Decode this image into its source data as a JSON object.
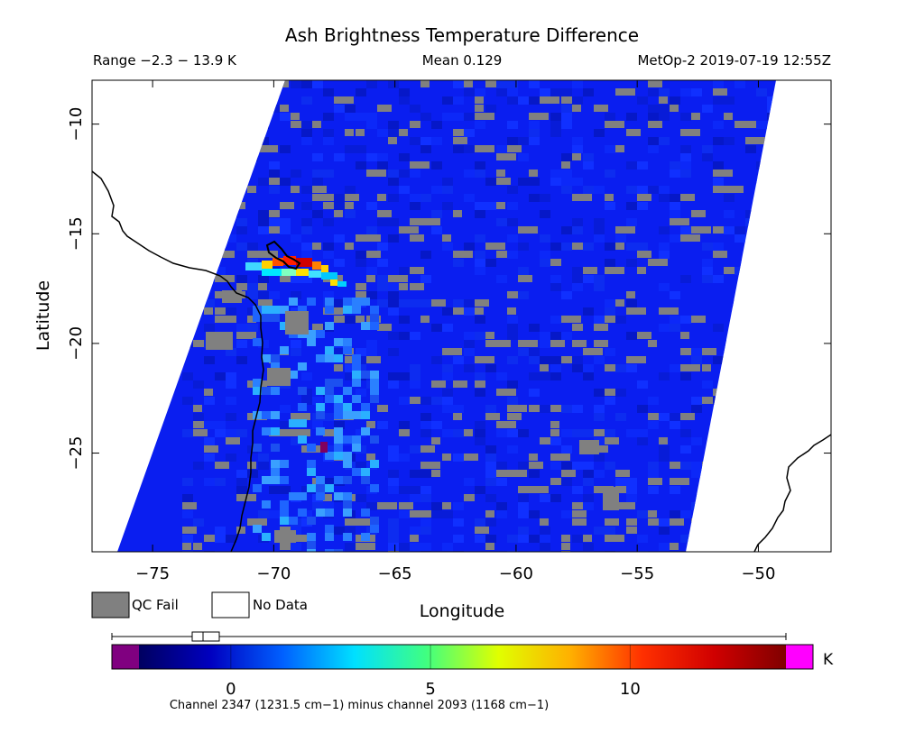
{
  "title": "Ash Brightness Temperature Difference",
  "range_text": "Range −2.3 − 13.9 K",
  "mean_text": "Mean 0.129",
  "satellite_text": "MetOp-2 2019-07-19 12:55Z",
  "xlabel": "Longitude",
  "ylabel": "Latitude",
  "legend": {
    "qc_fail": "QC Fail",
    "no_data": "No Data"
  },
  "colorbar": {
    "unit": "K",
    "ticks": [
      "0",
      "5",
      "10"
    ],
    "tick_values": [
      0,
      5,
      10
    ],
    "min": -2.3,
    "max": 13.9,
    "stops": [
      "#000060",
      "#0000c0",
      "#0060ff",
      "#00e0ff",
      "#40ff80",
      "#e0ff00",
      "#ffb000",
      "#ff3000",
      "#d00000",
      "#800000"
    ],
    "under_color": "#800080",
    "over_color": "#ff00ff",
    "caption": "Channel 2347 (1231.5 cm−1) minus channel 2093 (1168 cm−1)"
  },
  "map": {
    "x_ticks": [
      "−75",
      "−70",
      "−65",
      "−60",
      "−55",
      "−50"
    ],
    "x_tick_values": [
      -75,
      -70,
      -65,
      -60,
      -55,
      -50
    ],
    "y_ticks": [
      "−10",
      "−15",
      "−20",
      "−25"
    ],
    "y_tick_values": [
      -10,
      -15,
      -20,
      -25
    ],
    "lon_range": [
      -77.5,
      -47
    ],
    "lat_range": [
      -29.5,
      -8
    ],
    "colors": {
      "background_field": "#0a1ef0",
      "qc_fail": "#808080",
      "no_data": "#ffffff",
      "coast": "#000000"
    }
  }
}
